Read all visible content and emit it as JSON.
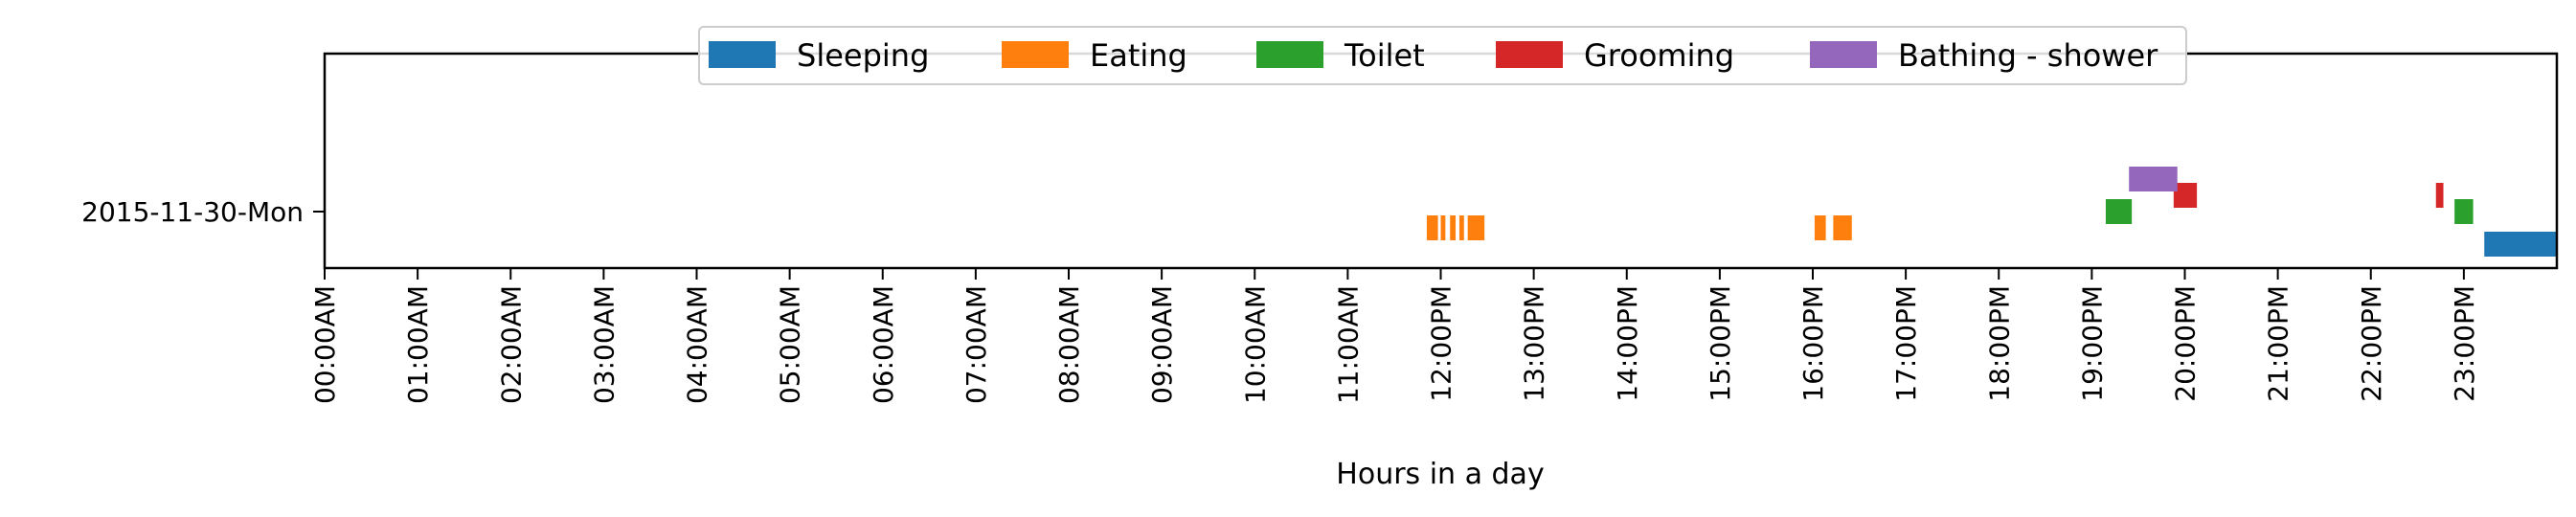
{
  "chart_data": {
    "type": "timeline",
    "title": "",
    "xlabel": "Hours in a day",
    "ylabel": "",
    "x_unit": "hour",
    "xlim": [
      0,
      24
    ],
    "x_ticks": [
      {
        "value": 0,
        "label": "00:00AM"
      },
      {
        "value": 1,
        "label": "01:00AM"
      },
      {
        "value": 2,
        "label": "02:00AM"
      },
      {
        "value": 3,
        "label": "03:00AM"
      },
      {
        "value": 4,
        "label": "04:00AM"
      },
      {
        "value": 5,
        "label": "05:00AM"
      },
      {
        "value": 6,
        "label": "06:00AM"
      },
      {
        "value": 7,
        "label": "07:00AM"
      },
      {
        "value": 8,
        "label": "08:00AM"
      },
      {
        "value": 9,
        "label": "09:00AM"
      },
      {
        "value": 10,
        "label": "10:00AM"
      },
      {
        "value": 11,
        "label": "11:00AM"
      },
      {
        "value": 12,
        "label": "12:00PM"
      },
      {
        "value": 13,
        "label": "13:00PM"
      },
      {
        "value": 14,
        "label": "14:00PM"
      },
      {
        "value": 15,
        "label": "15:00PM"
      },
      {
        "value": 16,
        "label": "16:00PM"
      },
      {
        "value": 17,
        "label": "17:00PM"
      },
      {
        "value": 18,
        "label": "18:00PM"
      },
      {
        "value": 19,
        "label": "19:00PM"
      },
      {
        "value": 20,
        "label": "20:00PM"
      },
      {
        "value": 21,
        "label": "21:00PM"
      },
      {
        "value": 22,
        "label": "22:00PM"
      },
      {
        "value": 23,
        "label": "23:00PM"
      }
    ],
    "y_categories": [
      "2015-11-30-Mon"
    ],
    "legend_position": "top-center",
    "grid": false,
    "series": [
      {
        "name": "Sleeping",
        "color": "#1f77b4",
        "lane": -2,
        "intervals": [
          [
            23.22,
            24.0
          ]
        ]
      },
      {
        "name": "Eating",
        "color": "#ff7f0e",
        "lane": -1,
        "intervals": [
          [
            11.85,
            11.97
          ],
          [
            12.0,
            12.05
          ],
          [
            12.1,
            12.16
          ],
          [
            12.2,
            12.25
          ],
          [
            12.29,
            12.47
          ],
          [
            16.02,
            16.14
          ],
          [
            16.22,
            16.42
          ]
        ]
      },
      {
        "name": "Toilet",
        "color": "#2ca02c",
        "lane": 0,
        "intervals": [
          [
            19.15,
            19.43
          ],
          [
            22.9,
            23.1
          ]
        ]
      },
      {
        "name": "Grooming",
        "color": "#d62728",
        "lane": 1,
        "intervals": [
          [
            19.88,
            20.13
          ],
          [
            22.7,
            22.78
          ]
        ]
      },
      {
        "name": "Bathing - shower",
        "color": "#9467bd",
        "lane": 2,
        "intervals": [
          [
            19.4,
            19.92
          ]
        ]
      }
    ]
  }
}
